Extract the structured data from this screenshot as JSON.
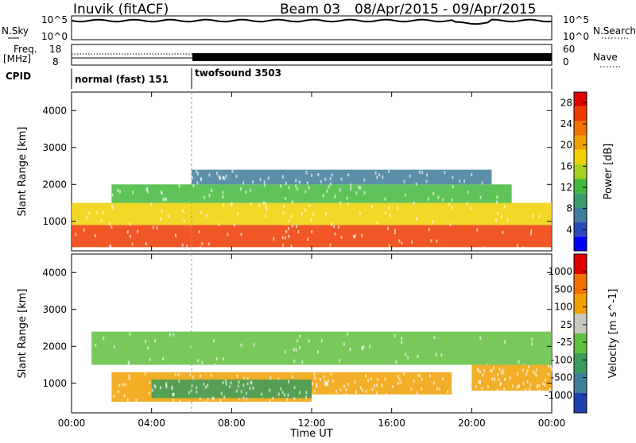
{
  "header": {
    "title": "Inuvik (fitACF)",
    "beam": "Beam 03",
    "date_range": "08/Apr/2015 - 09/Apr/2015"
  },
  "nsky": {
    "label": "N.Sky",
    "ticks": [
      "10^5",
      "10^0"
    ],
    "right_label": "N.Search",
    "right_ticks": [
      "10^5",
      "10^0"
    ]
  },
  "freq": {
    "label_line1": "Freq.",
    "label_line2": "[MHz]",
    "ticks": [
      "18",
      "8"
    ],
    "right_label": "Nave",
    "right_ticks": [
      "60",
      "0"
    ]
  },
  "cpid": {
    "label": "CPID",
    "segments": [
      {
        "name": "normal (fast) 151",
        "start": "00:00",
        "end": "06:00"
      },
      {
        "name": "twofsound 3503",
        "start": "06:00",
        "end": "24:00"
      }
    ]
  },
  "chart_data": [
    {
      "type": "heatmap",
      "title": "",
      "ylabel": "Slant Range [km]",
      "xlabel": "",
      "x_ticks": [
        "00:00",
        "04:00",
        "08:00",
        "12:00",
        "16:00",
        "20:00",
        "00:00"
      ],
      "y_ticks": [
        "1000",
        "2000",
        "3000",
        "4000"
      ],
      "ylim": [
        200,
        4500
      ],
      "colorbar": {
        "label": "Power [dB]",
        "ticks": [
          "4",
          "8",
          "12",
          "16",
          "20",
          "24",
          "28"
        ],
        "range": [
          0,
          30
        ],
        "colors": [
          "#0000ff",
          "#2a4ab8",
          "#3f7d9a",
          "#3a9c6a",
          "#44b83c",
          "#a8d020",
          "#f0d000",
          "#f0a000",
          "#f07000",
          "#ee3a00",
          "#e00000"
        ]
      },
      "bands": [
        {
          "t_start": 0.0,
          "t_end": 24.0,
          "r_low": 300,
          "r_high": 900,
          "value": 26
        },
        {
          "t_start": 0.0,
          "t_end": 24.0,
          "r_low": 900,
          "r_high": 1500,
          "value": 18
        },
        {
          "t_start": 2.0,
          "t_end": 22.0,
          "r_low": 1500,
          "r_high": 2000,
          "value": 12
        },
        {
          "t_start": 6.0,
          "t_end": 21.0,
          "r_low": 2000,
          "r_high": 2400,
          "value": 6
        }
      ]
    },
    {
      "type": "heatmap",
      "title": "",
      "ylabel": "Slant Range [km]",
      "xlabel": "Time UT",
      "x_ticks": [
        "00:00",
        "04:00",
        "08:00",
        "12:00",
        "16:00",
        "20:00",
        "00:00"
      ],
      "y_ticks": [
        "1000",
        "2000",
        "3000",
        "4000"
      ],
      "ylim": [
        200,
        4500
      ],
      "colorbar": {
        "label": "Velocity [m s^-1]",
        "ticks": [
          "1000",
          "500",
          "100",
          "25",
          "-25",
          "-100",
          "-500",
          "-1000"
        ],
        "colors": [
          "#2040b0",
          "#3f7f9a",
          "#3a9c5a",
          "#60c040",
          "#c8c8c0",
          "#f0a000",
          "#f07000",
          "#e00000"
        ]
      },
      "bands": [
        {
          "t_start": 1.0,
          "t_end": 24.0,
          "r_low": 1500,
          "r_high": 2400,
          "value": 0
        },
        {
          "t_start": 2.0,
          "t_end": 12.0,
          "r_low": 500,
          "r_high": 1300,
          "value": -150
        },
        {
          "t_start": 4.0,
          "t_end": 12.0,
          "r_low": 600,
          "r_high": 1100,
          "value": 80
        },
        {
          "t_start": 12.0,
          "t_end": 19.0,
          "r_low": 700,
          "r_high": 1300,
          "value": -150
        },
        {
          "t_start": 20.0,
          "t_end": 24.0,
          "r_low": 800,
          "r_high": 1500,
          "value": -200
        }
      ]
    }
  ]
}
